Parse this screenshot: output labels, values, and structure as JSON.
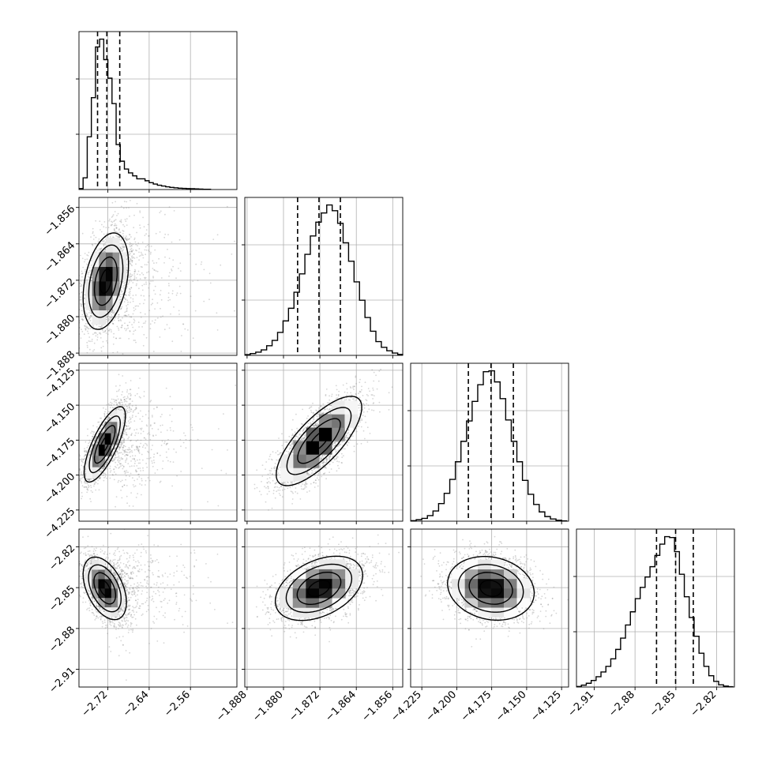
{
  "figure": {
    "type": "corner-plot",
    "grid": true,
    "colors": {
      "hist": "#000000",
      "scatter": "#8a8a8a",
      "contour": "#000000",
      "grid": "#b0b0b0",
      "axes": "#000000"
    },
    "parameters": [
      {
        "ticks": [
          "−2.72",
          "−2.64",
          "−2.56"
        ],
        "tick_values": [
          -2.72,
          -2.64,
          -2.56
        ],
        "range": [
          -2.776,
          -2.47
        ]
      },
      {
        "ticks": [
          "−1.888",
          "−1.880",
          "−1.872",
          "−1.864",
          "−1.856"
        ],
        "tick_values": [
          -1.888,
          -1.88,
          -1.872,
          -1.864,
          -1.856
        ],
        "range": [
          -1.8885,
          -1.8538
        ]
      },
      {
        "ticks": [
          "−4.225",
          "−4.200",
          "−4.175",
          "−4.150",
          "−4.125"
        ],
        "tick_values": [
          -4.225,
          -4.2,
          -4.175,
          -4.15,
          -4.125
        ],
        "range": [
          -4.233,
          -4.12
        ]
      },
      {
        "ticks": [
          "−2.91",
          "−2.88",
          "−2.85",
          "−2.82"
        ],
        "tick_values": [
          -2.91,
          -2.88,
          -2.85,
          -2.82
        ],
        "range": [
          -2.923,
          -2.807
        ]
      }
    ]
  },
  "chart_data": [
    {
      "type": "histogram",
      "param": 0,
      "title": "",
      "xlabel": "",
      "quantiles": [
        -2.74,
        -2.722,
        -2.697
      ],
      "bins": [
        -2.776,
        -2.768,
        -2.76,
        -2.752,
        -2.744,
        -2.736,
        -2.728,
        -2.72,
        -2.712,
        -2.704,
        -2.696,
        -2.688,
        -2.68,
        -2.672,
        -2.664,
        -2.656,
        -2.648,
        -2.64,
        -2.632,
        -2.624,
        -2.616,
        -2.608,
        -2.6,
        -2.592,
        -2.584,
        -2.576,
        -2.568,
        -2.56,
        -2.552,
        -2.544,
        -2.536,
        -2.528,
        -2.52
      ],
      "counts": [
        5,
        60,
        270,
        470,
        730,
        770,
        665,
        570,
        440,
        230,
        145,
        105,
        85,
        70,
        55,
        55,
        45,
        35,
        28,
        22,
        18,
        14,
        11,
        9,
        7,
        6,
        5,
        4,
        3,
        2,
        1,
        1
      ]
    },
    {
      "type": "histogram",
      "param": 1,
      "title": "",
      "xlabel": "",
      "quantiles": [
        -1.8769,
        -1.8722,
        -1.8675
      ],
      "bins": [
        -1.8885,
        -1.8873,
        -1.8861,
        -1.8849,
        -1.8837,
        -1.8825,
        -1.8813,
        -1.8801,
        -1.8789,
        -1.8777,
        -1.8765,
        -1.8753,
        -1.8741,
        -1.8729,
        -1.8717,
        -1.8705,
        -1.8693,
        -1.8681,
        -1.8669,
        -1.8657,
        -1.8645,
        -1.8633,
        -1.8621,
        -1.8609,
        -1.8597,
        -1.8585,
        -1.8573,
        -1.8561,
        -1.8549,
        -1.8537
      ],
      "counts": [
        3,
        8,
        14,
        24,
        42,
        65,
        100,
        150,
        205,
        275,
        355,
        440,
        520,
        580,
        620,
        655,
        630,
        575,
        490,
        410,
        320,
        240,
        165,
        105,
        60,
        35,
        20,
        10,
        4
      ]
    },
    {
      "type": "histogram",
      "param": 2,
      "title": "",
      "xlabel": "",
      "quantiles": [
        -4.1917,
        -4.1755,
        -4.1595
      ],
      "bins": [
        -4.233,
        -4.229,
        -4.225,
        -4.221,
        -4.217,
        -4.213,
        -4.209,
        -4.205,
        -4.201,
        -4.197,
        -4.193,
        -4.189,
        -4.185,
        -4.181,
        -4.177,
        -4.173,
        -4.169,
        -4.165,
        -4.161,
        -4.157,
        -4.153,
        -4.149,
        -4.145,
        -4.141,
        -4.137,
        -4.133,
        -4.129,
        -4.125,
        -4.121
      ],
      "counts": [
        3,
        8,
        15,
        30,
        55,
        95,
        150,
        225,
        320,
        430,
        540,
        645,
        735,
        805,
        810,
        750,
        660,
        545,
        430,
        320,
        220,
        145,
        90,
        50,
        25,
        12,
        5,
        2
      ]
    },
    {
      "type": "histogram",
      "param": 3,
      "title": "",
      "xlabel": "",
      "quantiles": [
        -2.8642,
        -2.8502,
        -2.8372
      ],
      "bins": [
        -2.923,
        -2.9194,
        -2.9158,
        -2.9122,
        -2.9086,
        -2.905,
        -2.9014,
        -2.8978,
        -2.8942,
        -2.8906,
        -2.887,
        -2.8834,
        -2.8798,
        -2.8762,
        -2.8726,
        -2.869,
        -2.8654,
        -2.8618,
        -2.8582,
        -2.8546,
        -2.851,
        -2.8474,
        -2.8438,
        -2.8402,
        -2.8366,
        -2.833,
        -2.8294,
        -2.8258,
        -2.8222,
        -2.8186,
        -2.815,
        -2.8114,
        -2.8078
      ],
      "counts": [
        3,
        10,
        20,
        35,
        55,
        80,
        110,
        150,
        200,
        260,
        330,
        400,
        470,
        530,
        585,
        640,
        700,
        760,
        800,
        795,
        720,
        600,
        480,
        370,
        270,
        180,
        110,
        60,
        30,
        12,
        5,
        2
      ]
    },
    {
      "type": "scatter-contour",
      "x_param": 0,
      "y_param": 1,
      "mean": [
        -2.724,
        -1.8722
      ],
      "sd": [
        0.022,
        0.0053
      ],
      "corr": 0.35,
      "tail": "right",
      "title": "",
      "xlabel": "",
      "ylabel": ""
    },
    {
      "type": "scatter-contour",
      "x_param": 0,
      "y_param": 2,
      "mean": [
        -2.726,
        -4.178
      ],
      "sd": [
        0.02,
        0.0135
      ],
      "corr": 0.75,
      "tail": "right",
      "title": "",
      "xlabel": "",
      "ylabel": ""
    },
    {
      "type": "scatter-contour",
      "x_param": 1,
      "y_param": 2,
      "mean": [
        -1.8722,
        -4.1756
      ],
      "sd": [
        0.0047,
        0.016
      ],
      "corr": 0.75,
      "tail": "none",
      "title": "",
      "xlabel": "",
      "ylabel": ""
    },
    {
      "type": "scatter-contour",
      "x_param": 0,
      "y_param": 3,
      "mean": [
        -2.726,
        -2.8505
      ],
      "sd": [
        0.021,
        0.0115
      ],
      "corr": -0.45,
      "tail": "right",
      "title": "",
      "xlabel": "",
      "ylabel": ""
    },
    {
      "type": "scatter-contour",
      "x_param": 1,
      "y_param": 3,
      "mean": [
        -1.8722,
        -2.8505
      ],
      "sd": [
        0.0048,
        0.0118
      ],
      "corr": 0.4,
      "tail": "none",
      "title": "",
      "xlabel": "",
      "ylabel": ""
    },
    {
      "type": "scatter-contour",
      "x_param": 2,
      "y_param": 3,
      "mean": [
        -4.1756,
        -2.8505
      ],
      "sd": [
        0.0155,
        0.0117
      ],
      "corr": -0.15,
      "tail": "none",
      "title": "",
      "xlabel": "",
      "ylabel": ""
    }
  ]
}
